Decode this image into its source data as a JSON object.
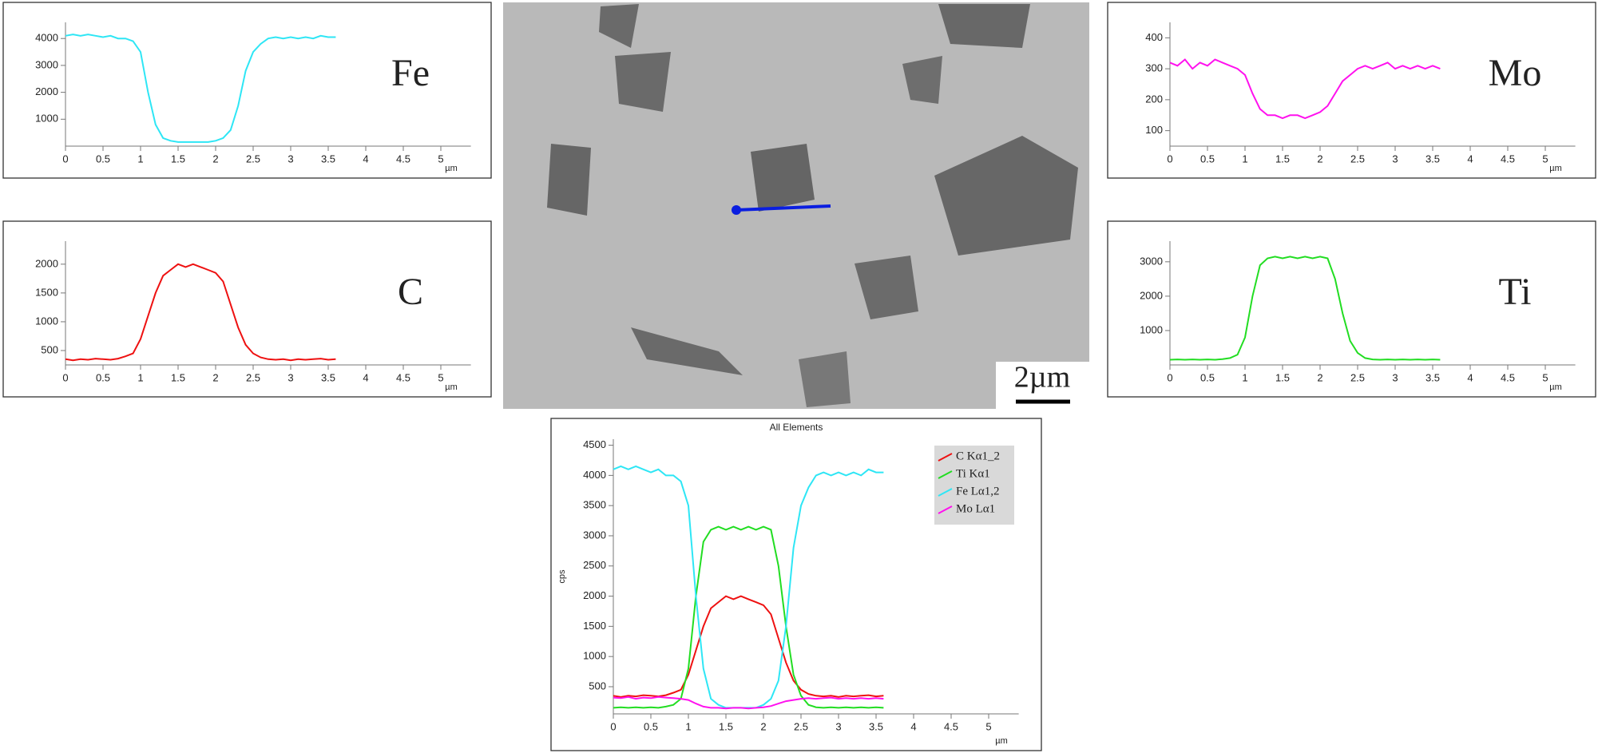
{
  "micrograph": {
    "scale_label": "2µm"
  },
  "chart_data": [
    {
      "type": "line",
      "label": "Fe",
      "x_label": "µm",
      "color": "#2ee6f5",
      "x": [
        0,
        0.1,
        0.2,
        0.3,
        0.4,
        0.5,
        0.6,
        0.7,
        0.8,
        0.9,
        1,
        1.1,
        1.2,
        1.3,
        1.4,
        1.5,
        1.6,
        1.7,
        1.8,
        1.9,
        2,
        2.1,
        2.2,
        2.3,
        2.4,
        2.5,
        2.6,
        2.7,
        2.8,
        2.9,
        3,
        3.1,
        3.2,
        3.3,
        3.4,
        3.5,
        3.6
      ],
      "values": [
        4100,
        4150,
        4100,
        4150,
        4100,
        4050,
        4100,
        4000,
        4000,
        3900,
        3500,
        2000,
        800,
        300,
        200,
        150,
        150,
        150,
        150,
        150,
        200,
        300,
        600,
        1500,
        2800,
        3500,
        3800,
        4000,
        4050,
        4000,
        4050,
        4000,
        4050,
        4000,
        4100,
        4050,
        4050
      ],
      "xlim": [
        0,
        5.4
      ],
      "xticks": [
        0,
        0.5,
        1,
        1.5,
        2,
        2.5,
        3,
        3.5,
        4,
        4.5,
        5
      ],
      "ylim": [
        0,
        4600
      ],
      "yticks": [
        1000,
        2000,
        3000,
        4000
      ]
    },
    {
      "type": "line",
      "label": "C",
      "x_label": "µm",
      "color": "#ee1111",
      "x": [
        0,
        0.1,
        0.2,
        0.3,
        0.4,
        0.5,
        0.6,
        0.7,
        0.8,
        0.9,
        1,
        1.1,
        1.2,
        1.3,
        1.4,
        1.5,
        1.6,
        1.7,
        1.8,
        1.9,
        2,
        2.1,
        2.2,
        2.3,
        2.4,
        2.5,
        2.6,
        2.7,
        2.8,
        2.9,
        3,
        3.1,
        3.2,
        3.3,
        3.4,
        3.5,
        3.6
      ],
      "values": [
        350,
        330,
        350,
        340,
        360,
        350,
        340,
        360,
        400,
        450,
        700,
        1100,
        1500,
        1800,
        1900,
        2000,
        1950,
        2000,
        1950,
        1900,
        1850,
        1700,
        1300,
        900,
        600,
        450,
        380,
        350,
        340,
        350,
        330,
        350,
        340,
        350,
        360,
        340,
        350
      ],
      "xlim": [
        0,
        5.4
      ],
      "xticks": [
        0,
        0.5,
        1,
        1.5,
        2,
        2.5,
        3,
        3.5,
        4,
        4.5,
        5
      ],
      "ylim": [
        250,
        2400
      ],
      "yticks": [
        500,
        1000,
        1500,
        2000
      ]
    },
    {
      "type": "line",
      "label": "Mo",
      "x_label": "µm",
      "color": "#ff11ee",
      "x": [
        0,
        0.1,
        0.2,
        0.3,
        0.4,
        0.5,
        0.6,
        0.7,
        0.8,
        0.9,
        1,
        1.1,
        1.2,
        1.3,
        1.4,
        1.5,
        1.6,
        1.7,
        1.8,
        1.9,
        2,
        2.1,
        2.2,
        2.3,
        2.4,
        2.5,
        2.6,
        2.7,
        2.8,
        2.9,
        3,
        3.1,
        3.2,
        3.3,
        3.4,
        3.5,
        3.6
      ],
      "values": [
        320,
        310,
        330,
        300,
        320,
        310,
        330,
        320,
        310,
        300,
        280,
        220,
        170,
        150,
        150,
        140,
        150,
        150,
        140,
        150,
        160,
        180,
        220,
        260,
        280,
        300,
        310,
        300,
        310,
        320,
        300,
        310,
        300,
        310,
        300,
        310,
        300
      ],
      "xlim": [
        0,
        5.4
      ],
      "xticks": [
        0,
        0.5,
        1,
        1.5,
        2,
        2.5,
        3,
        3.5,
        4,
        4.5,
        5
      ],
      "ylim": [
        50,
        450
      ],
      "yticks": [
        100,
        200,
        300,
        400
      ]
    },
    {
      "type": "line",
      "label": "Ti",
      "x_label": "µm",
      "color": "#22dd22",
      "x": [
        0,
        0.1,
        0.2,
        0.3,
        0.4,
        0.5,
        0.6,
        0.7,
        0.8,
        0.9,
        1,
        1.1,
        1.2,
        1.3,
        1.4,
        1.5,
        1.6,
        1.7,
        1.8,
        1.9,
        2,
        2.1,
        2.2,
        2.3,
        2.4,
        2.5,
        2.6,
        2.7,
        2.8,
        2.9,
        3,
        3.1,
        3.2,
        3.3,
        3.4,
        3.5,
        3.6
      ],
      "values": [
        150,
        160,
        150,
        160,
        150,
        160,
        150,
        170,
        200,
        300,
        800,
        2000,
        2900,
        3100,
        3150,
        3100,
        3150,
        3100,
        3150,
        3100,
        3150,
        3100,
        2500,
        1500,
        700,
        350,
        200,
        160,
        150,
        160,
        150,
        160,
        150,
        160,
        150,
        160,
        150
      ],
      "xlim": [
        0,
        5.4
      ],
      "xticks": [
        0,
        0.5,
        1,
        1.5,
        2,
        2.5,
        3,
        3.5,
        4,
        4.5,
        5
      ],
      "ylim": [
        0,
        3600
      ],
      "yticks": [
        1000,
        2000,
        3000
      ]
    },
    {
      "type": "line",
      "title": "All Elements",
      "x_label": "µm",
      "y_label": "cps",
      "legend": "upper right",
      "x": [
        0,
        0.1,
        0.2,
        0.3,
        0.4,
        0.5,
        0.6,
        0.7,
        0.8,
        0.9,
        1,
        1.1,
        1.2,
        1.3,
        1.4,
        1.5,
        1.6,
        1.7,
        1.8,
        1.9,
        2,
        2.1,
        2.2,
        2.3,
        2.4,
        2.5,
        2.6,
        2.7,
        2.8,
        2.9,
        3,
        3.1,
        3.2,
        3.3,
        3.4,
        3.5,
        3.6
      ],
      "series": [
        {
          "name": "C Kα1_2",
          "color": "#ee1111",
          "values": [
            350,
            330,
            350,
            340,
            360,
            350,
            340,
            360,
            400,
            450,
            700,
            1100,
            1500,
            1800,
            1900,
            2000,
            1950,
            2000,
            1950,
            1900,
            1850,
            1700,
            1300,
            900,
            600,
            450,
            380,
            350,
            340,
            350,
            330,
            350,
            340,
            350,
            360,
            340,
            350
          ]
        },
        {
          "name": "Ti Kα1",
          "color": "#22dd22",
          "values": [
            150,
            160,
            150,
            160,
            150,
            160,
            150,
            170,
            200,
            300,
            800,
            2000,
            2900,
            3100,
            3150,
            3100,
            3150,
            3100,
            3150,
            3100,
            3150,
            3100,
            2500,
            1500,
            700,
            350,
            200,
            160,
            150,
            160,
            150,
            160,
            150,
            160,
            150,
            160,
            150
          ]
        },
        {
          "name": "Fe Lα1,2",
          "color": "#2ee6f5",
          "values": [
            4100,
            4150,
            4100,
            4150,
            4100,
            4050,
            4100,
            4000,
            4000,
            3900,
            3500,
            2000,
            800,
            300,
            200,
            150,
            150,
            150,
            150,
            150,
            200,
            300,
            600,
            1500,
            2800,
            3500,
            3800,
            4000,
            4050,
            4000,
            4050,
            4000,
            4050,
            4000,
            4100,
            4050,
            4050
          ]
        },
        {
          "name": "Mo Lα1",
          "color": "#ff11ee",
          "values": [
            320,
            310,
            330,
            300,
            320,
            310,
            330,
            320,
            310,
            300,
            280,
            220,
            170,
            150,
            150,
            140,
            150,
            150,
            140,
            150,
            160,
            180,
            220,
            260,
            280,
            300,
            310,
            300,
            310,
            320,
            300,
            310,
            300,
            310,
            300,
            310,
            300
          ]
        }
      ],
      "xlim": [
        0,
        5.4
      ],
      "xticks": [
        0,
        0.5,
        1,
        1.5,
        2,
        2.5,
        3,
        3.5,
        4,
        4.5,
        5
      ],
      "ylim": [
        50,
        4600
      ],
      "yticks": [
        500,
        1000,
        1500,
        2000,
        2500,
        3000,
        3500,
        4000,
        4500
      ]
    }
  ]
}
